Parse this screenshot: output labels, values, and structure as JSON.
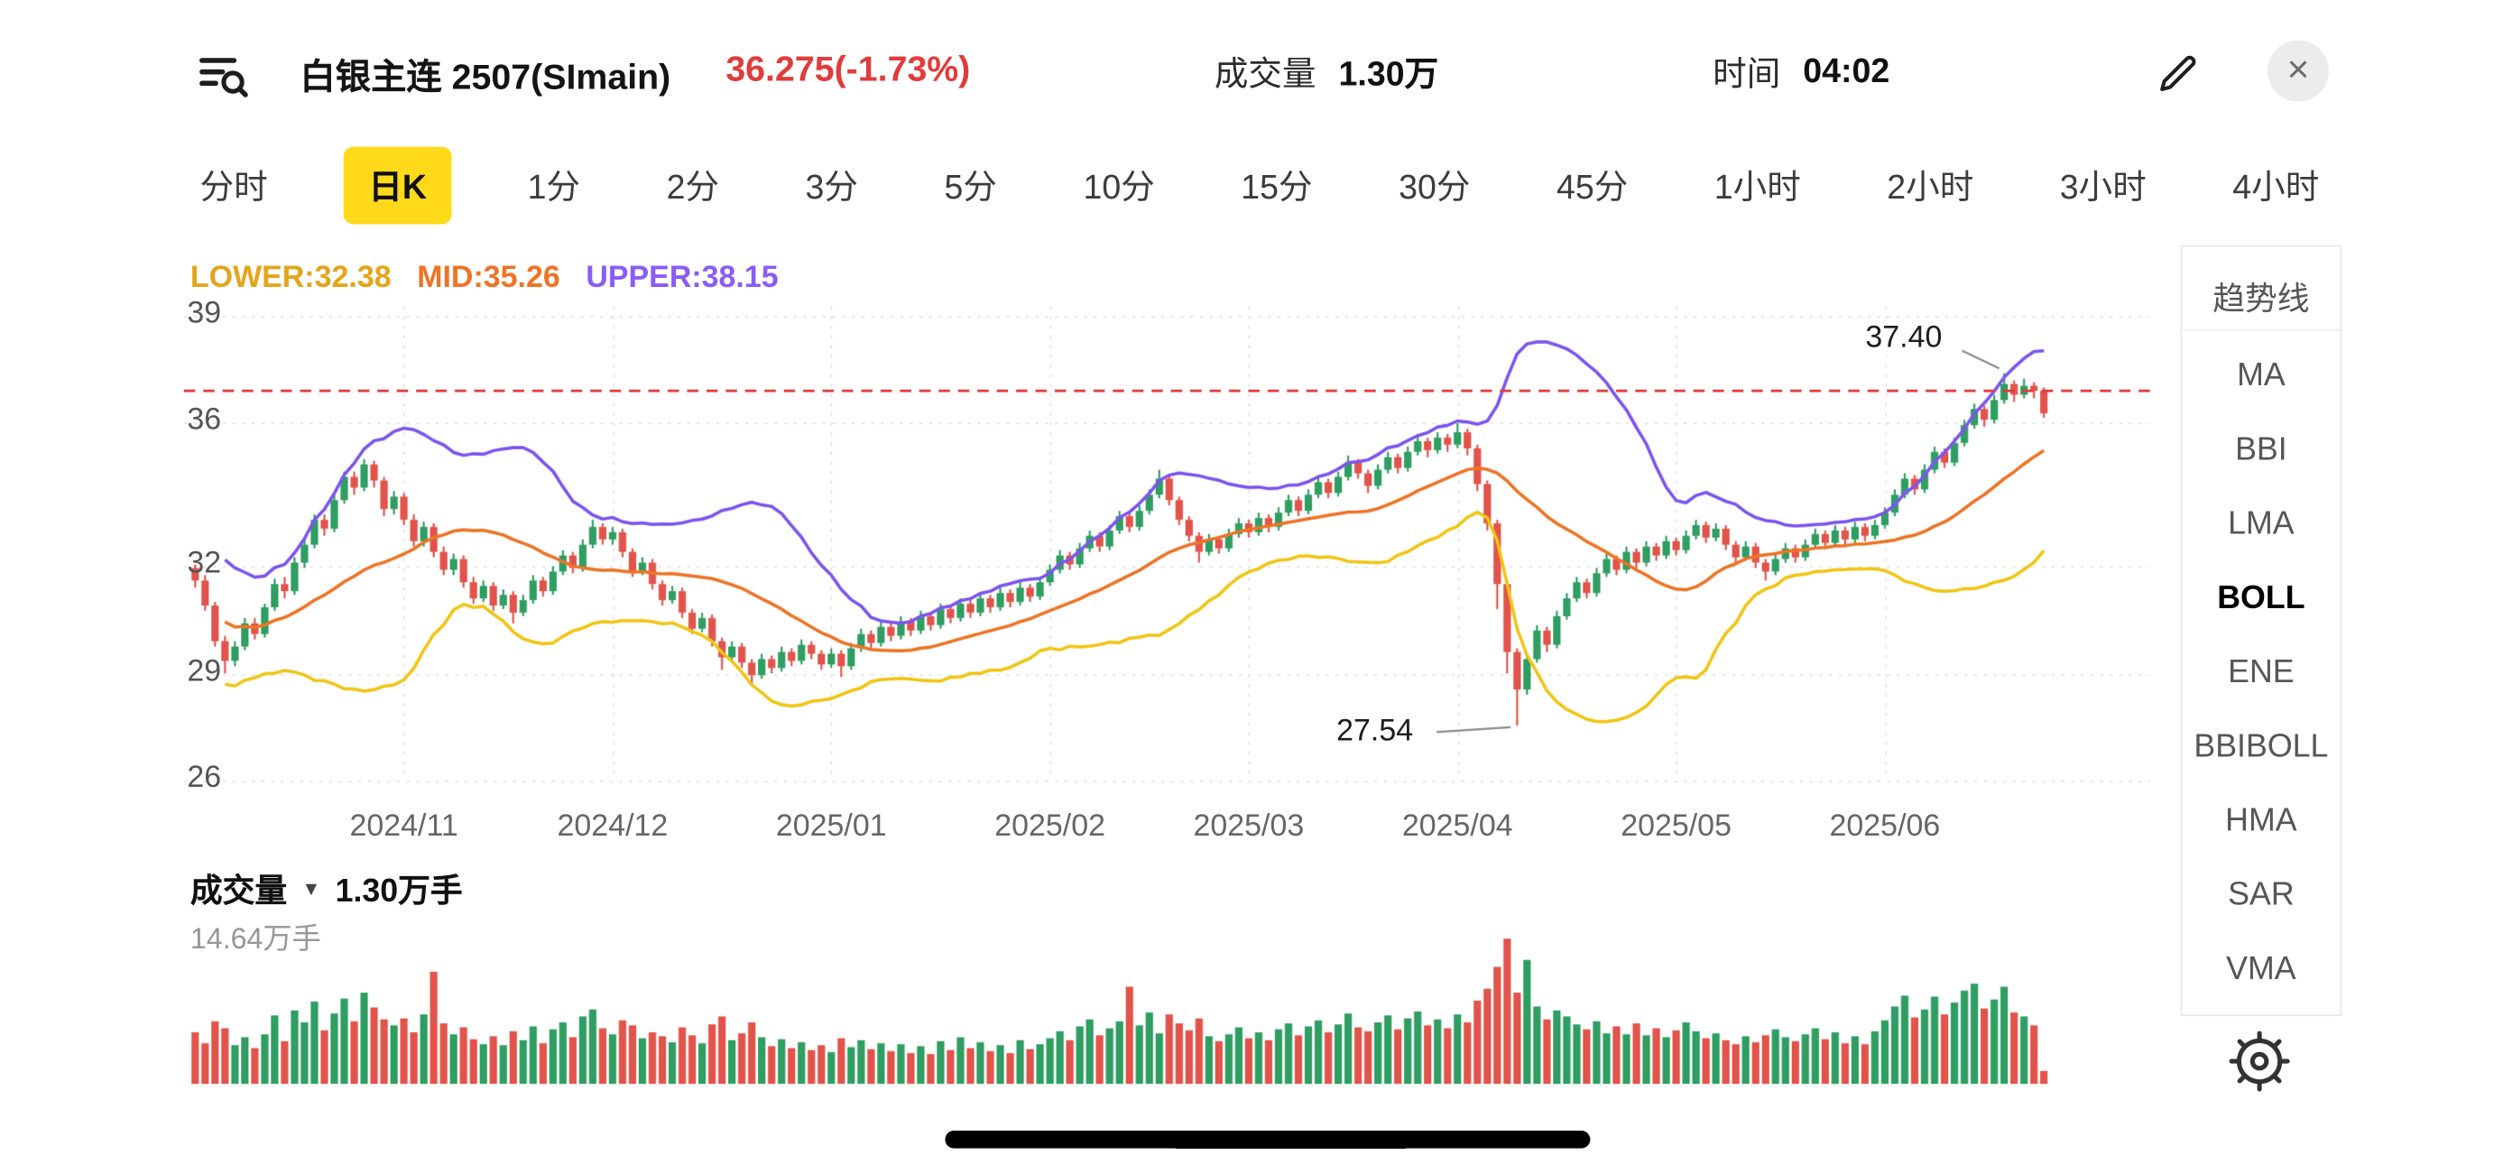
{
  "header": {
    "title": "白银主连 2507(SImain)",
    "price": "36.275(-1.73%)",
    "price_color": "#e23b3b",
    "volume_label": "成交量",
    "volume_value": "1.30万",
    "time_label": "时间",
    "time_value": "04:02",
    "icons": {
      "close": "×",
      "dropdown": "▼"
    }
  },
  "tabs": {
    "items": [
      "分时",
      "日K",
      "1分",
      "2分",
      "3分",
      "5分",
      "10分",
      "15分",
      "30分",
      "45分",
      "1小时",
      "2小时",
      "3小时",
      "4小时"
    ],
    "active": "日K",
    "active_bg": "#ffd91a"
  },
  "indicator": {
    "lower": {
      "text": "LOWER:32.38",
      "color": "#e3a51c"
    },
    "mid": {
      "text": "MID:35.26",
      "color": "#ee7426"
    },
    "upper": {
      "text": "UPPER:38.15",
      "color": "#8a5cf5"
    }
  },
  "volume_pane": {
    "label": "成交量",
    "value": "1.30万手",
    "max_label": "14.64万手"
  },
  "sidebar": {
    "items": [
      "趋势线",
      "MA",
      "BBI",
      "LMA",
      "BOLL",
      "ENE",
      "BBIBOLL",
      "HMA",
      "SAR",
      "VMA"
    ],
    "active": "BOLL"
  },
  "chart_data": {
    "type": "candlestick",
    "title": "白银主连 2507(SImain) 日K",
    "y_ticks": [
      39,
      36,
      32,
      29,
      26
    ],
    "y_range": [
      25.7,
      39.3
    ],
    "x_ticks": [
      {
        "label": "2024/11",
        "i": 21
      },
      {
        "label": "2024/12",
        "i": 42
      },
      {
        "label": "2025/01",
        "i": 64
      },
      {
        "label": "2025/02",
        "i": 86
      },
      {
        "label": "2025/03",
        "i": 106
      },
      {
        "label": "2025/04",
        "i": 127
      },
      {
        "label": "2025/05",
        "i": 149
      },
      {
        "label": "2025/06",
        "i": 170
      }
    ],
    "dashed_line_price": 36.91,
    "boll": {
      "period": 20,
      "mult": 2,
      "last_lower": 32.38,
      "last_mid": 35.26,
      "last_upper": 38.15
    },
    "annotations": [
      {
        "text": "37.40",
        "i": 182,
        "price": 37.4,
        "placement": "above-left"
      },
      {
        "text": "27.54",
        "i": 133,
        "price": 27.54,
        "placement": "left"
      }
    ],
    "colors": {
      "up": "#2f9e62",
      "down": "#e2544b",
      "boll_upper": "#7d55f0",
      "boll_mid": "#ee7426",
      "boll_lower": "#f0c514",
      "dashed": "#e23b3b",
      "grid": "#e5e5e5",
      "annotation_line": "#8a8a8a"
    },
    "volume_max": 14.64,
    "candles": [
      [
        31.95,
        32.05,
        31.4,
        31.6
      ],
      [
        31.6,
        31.75,
        30.75,
        30.9
      ],
      [
        30.9,
        31.0,
        29.75,
        29.9
      ],
      [
        29.9,
        30.05,
        29.0,
        29.35
      ],
      [
        29.35,
        29.9,
        29.2,
        29.75
      ],
      [
        29.75,
        30.55,
        29.65,
        30.4
      ],
      [
        30.4,
        30.55,
        29.95,
        30.1
      ],
      [
        30.1,
        30.95,
        30.0,
        30.85
      ],
      [
        30.85,
        31.65,
        30.75,
        31.5
      ],
      [
        31.5,
        31.7,
        31.1,
        31.3
      ],
      [
        31.3,
        32.25,
        31.2,
        32.1
      ],
      [
        32.1,
        32.75,
        31.95,
        32.6
      ],
      [
        32.6,
        33.45,
        32.5,
        33.3
      ],
      [
        33.3,
        33.45,
        32.85,
        33.05
      ],
      [
        33.05,
        34.0,
        32.95,
        33.85
      ],
      [
        33.85,
        34.65,
        33.75,
        34.5
      ],
      [
        34.5,
        34.65,
        34.0,
        34.2
      ],
      [
        34.2,
        35.0,
        34.1,
        34.85
      ],
      [
        34.85,
        34.95,
        34.2,
        34.4
      ],
      [
        34.4,
        34.5,
        33.4,
        33.6
      ],
      [
        33.6,
        34.1,
        33.45,
        33.95
      ],
      [
        33.95,
        34.05,
        33.15,
        33.3
      ],
      [
        33.3,
        33.45,
        32.55,
        32.7
      ],
      [
        32.7,
        33.25,
        32.55,
        33.1
      ],
      [
        33.1,
        33.2,
        32.25,
        32.4
      ],
      [
        32.4,
        32.55,
        31.75,
        31.9
      ],
      [
        31.9,
        32.35,
        31.75,
        32.2
      ],
      [
        32.2,
        32.3,
        31.4,
        31.55
      ],
      [
        31.55,
        31.7,
        30.95,
        31.1
      ],
      [
        31.1,
        31.6,
        31.0,
        31.45
      ],
      [
        31.45,
        31.55,
        30.75,
        30.9
      ],
      [
        30.9,
        31.35,
        30.8,
        31.2
      ],
      [
        31.2,
        31.3,
        30.4,
        30.7
      ],
      [
        30.7,
        31.2,
        30.6,
        31.05
      ],
      [
        31.05,
        31.75,
        30.95,
        31.6
      ],
      [
        31.6,
        31.7,
        31.15,
        31.3
      ],
      [
        31.3,
        32.0,
        31.2,
        31.85
      ],
      [
        31.85,
        32.45,
        31.75,
        32.3
      ],
      [
        32.3,
        32.4,
        31.8,
        31.95
      ],
      [
        31.95,
        32.75,
        31.85,
        32.6
      ],
      [
        32.6,
        33.3,
        32.5,
        33.1
      ],
      [
        33.1,
        33.2,
        32.6,
        32.75
      ],
      [
        32.75,
        33.1,
        32.6,
        32.95
      ],
      [
        32.95,
        33.05,
        32.25,
        32.4
      ],
      [
        32.4,
        32.5,
        31.7,
        31.85
      ],
      [
        31.85,
        32.25,
        31.75,
        32.1
      ],
      [
        32.1,
        32.2,
        31.35,
        31.5
      ],
      [
        31.5,
        31.6,
        30.9,
        31.05
      ],
      [
        31.05,
        31.45,
        30.95,
        31.3
      ],
      [
        31.3,
        31.4,
        30.55,
        30.7
      ],
      [
        30.7,
        30.8,
        30.1,
        30.25
      ],
      [
        30.25,
        30.7,
        30.15,
        30.55
      ],
      [
        30.55,
        30.65,
        29.75,
        29.9
      ],
      [
        29.9,
        30.0,
        29.1,
        29.45
      ],
      [
        29.45,
        29.9,
        29.35,
        29.75
      ],
      [
        29.75,
        29.85,
        29.15,
        29.3
      ],
      [
        29.3,
        29.4,
        28.7,
        28.95
      ],
      [
        28.95,
        29.55,
        28.85,
        29.4
      ],
      [
        29.4,
        29.5,
        29.0,
        29.15
      ],
      [
        29.15,
        29.75,
        29.05,
        29.6
      ],
      [
        29.6,
        29.7,
        29.2,
        29.35
      ],
      [
        29.35,
        29.95,
        29.25,
        29.8
      ],
      [
        29.8,
        29.9,
        29.4,
        29.55
      ],
      [
        29.55,
        29.65,
        29.1,
        29.25
      ],
      [
        29.25,
        29.7,
        29.15,
        29.55
      ],
      [
        29.55,
        29.65,
        28.9,
        29.2
      ],
      [
        29.2,
        29.85,
        29.1,
        29.7
      ],
      [
        29.7,
        30.25,
        29.6,
        30.1
      ],
      [
        30.1,
        30.2,
        29.7,
        29.85
      ],
      [
        29.85,
        30.45,
        29.75,
        30.3
      ],
      [
        30.3,
        30.4,
        29.9,
        30.05
      ],
      [
        30.05,
        30.6,
        29.95,
        30.45
      ],
      [
        30.45,
        30.55,
        30.05,
        30.2
      ],
      [
        30.2,
        30.75,
        30.1,
        30.6
      ],
      [
        30.6,
        30.7,
        30.2,
        30.35
      ],
      [
        30.35,
        30.95,
        30.25,
        30.8
      ],
      [
        30.8,
        30.9,
        30.4,
        30.55
      ],
      [
        30.55,
        31.1,
        30.45,
        30.95
      ],
      [
        30.95,
        31.05,
        30.55,
        30.7
      ],
      [
        30.7,
        31.25,
        30.6,
        31.1
      ],
      [
        31.1,
        31.2,
        30.7,
        30.85
      ],
      [
        30.85,
        31.4,
        30.75,
        31.25
      ],
      [
        31.25,
        31.35,
        30.85,
        31.0
      ],
      [
        31.0,
        31.55,
        30.9,
        31.4
      ],
      [
        31.4,
        31.5,
        31.0,
        31.15
      ],
      [
        31.15,
        31.7,
        31.05,
        31.55
      ],
      [
        31.55,
        32.05,
        31.45,
        31.9
      ],
      [
        31.9,
        32.45,
        31.8,
        32.3
      ],
      [
        32.3,
        32.4,
        31.9,
        32.05
      ],
      [
        32.05,
        32.65,
        31.95,
        32.5
      ],
      [
        32.5,
        33.0,
        32.4,
        32.85
      ],
      [
        32.85,
        32.95,
        32.4,
        32.55
      ],
      [
        32.55,
        33.15,
        32.45,
        33.0
      ],
      [
        33.0,
        33.55,
        32.9,
        33.4
      ],
      [
        33.4,
        33.5,
        32.95,
        33.1
      ],
      [
        33.1,
        33.7,
        33.0,
        33.55
      ],
      [
        33.55,
        34.15,
        33.45,
        34.0
      ],
      [
        34.0,
        34.7,
        33.9,
        34.45
      ],
      [
        34.45,
        34.55,
        33.7,
        33.85
      ],
      [
        33.85,
        33.95,
        33.15,
        33.3
      ],
      [
        33.3,
        33.4,
        32.7,
        32.85
      ],
      [
        32.85,
        32.95,
        32.1,
        32.4
      ],
      [
        32.4,
        32.9,
        32.3,
        32.75
      ],
      [
        32.75,
        32.85,
        32.35,
        32.5
      ],
      [
        32.5,
        33.05,
        32.4,
        32.9
      ],
      [
        32.9,
        33.35,
        32.8,
        33.2
      ],
      [
        33.2,
        33.3,
        32.8,
        32.95
      ],
      [
        32.95,
        33.5,
        32.85,
        33.35
      ],
      [
        33.35,
        33.45,
        32.95,
        33.1
      ],
      [
        33.1,
        33.65,
        33.0,
        33.5
      ],
      [
        33.5,
        34.0,
        33.4,
        33.85
      ],
      [
        33.85,
        33.95,
        33.4,
        33.55
      ],
      [
        33.55,
        34.15,
        33.45,
        34.0
      ],
      [
        34.0,
        34.5,
        33.9,
        34.35
      ],
      [
        34.35,
        34.45,
        33.9,
        34.05
      ],
      [
        34.05,
        34.65,
        33.95,
        34.5
      ],
      [
        34.5,
        35.1,
        34.4,
        34.9
      ],
      [
        34.9,
        35.0,
        34.45,
        34.6
      ],
      [
        34.6,
        34.7,
        34.05,
        34.25
      ],
      [
        34.25,
        34.85,
        34.15,
        34.7
      ],
      [
        34.7,
        35.2,
        34.6,
        35.05
      ],
      [
        35.05,
        35.15,
        34.6,
        34.75
      ],
      [
        34.75,
        35.35,
        34.65,
        35.2
      ],
      [
        35.2,
        35.7,
        35.1,
        35.5
      ],
      [
        35.5,
        35.6,
        35.05,
        35.25
      ],
      [
        35.25,
        35.75,
        35.15,
        35.6
      ],
      [
        35.6,
        35.7,
        35.2,
        35.4
      ],
      [
        35.4,
        36.0,
        35.3,
        35.75
      ],
      [
        35.75,
        35.85,
        35.1,
        35.3
      ],
      [
        35.3,
        35.4,
        34.1,
        34.3
      ],
      [
        34.3,
        34.4,
        33.0,
        33.2
      ],
      [
        33.2,
        33.3,
        30.8,
        31.5
      ],
      [
        31.5,
        31.6,
        29.0,
        29.6
      ],
      [
        29.6,
        29.7,
        27.54,
        28.55
      ],
      [
        28.55,
        29.55,
        28.4,
        29.4
      ],
      [
        29.4,
        30.35,
        29.3,
        30.2
      ],
      [
        30.2,
        30.3,
        29.6,
        29.8
      ],
      [
        29.8,
        30.75,
        29.7,
        30.6
      ],
      [
        30.6,
        31.25,
        30.5,
        31.1
      ],
      [
        31.1,
        31.7,
        31.0,
        31.55
      ],
      [
        31.55,
        31.65,
        31.1,
        31.25
      ],
      [
        31.25,
        31.95,
        31.15,
        31.8
      ],
      [
        31.8,
        32.35,
        31.7,
        32.2
      ],
      [
        32.2,
        32.3,
        31.75,
        31.9
      ],
      [
        31.9,
        32.55,
        31.8,
        32.4
      ],
      [
        32.4,
        32.5,
        31.95,
        32.1
      ],
      [
        32.1,
        32.7,
        32.0,
        32.55
      ],
      [
        32.55,
        32.65,
        32.15,
        32.3
      ],
      [
        32.3,
        32.85,
        32.2,
        32.7
      ],
      [
        32.7,
        32.8,
        32.3,
        32.45
      ],
      [
        32.45,
        33.0,
        32.35,
        32.85
      ],
      [
        32.85,
        33.3,
        32.75,
        33.15
      ],
      [
        33.15,
        33.25,
        32.65,
        32.8
      ],
      [
        32.8,
        33.2,
        32.7,
        33.05
      ],
      [
        33.05,
        33.15,
        32.45,
        32.6
      ],
      [
        32.6,
        32.7,
        32.1,
        32.25
      ],
      [
        32.25,
        32.7,
        32.15,
        32.55
      ],
      [
        32.55,
        32.65,
        31.95,
        32.1
      ],
      [
        32.1,
        32.2,
        31.6,
        31.85
      ],
      [
        31.85,
        32.35,
        31.75,
        32.2
      ],
      [
        32.2,
        32.65,
        32.1,
        32.5
      ],
      [
        32.5,
        32.6,
        32.1,
        32.25
      ],
      [
        32.25,
        32.75,
        32.15,
        32.6
      ],
      [
        32.6,
        33.05,
        32.5,
        32.9
      ],
      [
        32.9,
        33.0,
        32.5,
        32.65
      ],
      [
        32.65,
        33.15,
        32.55,
        33.0
      ],
      [
        33.0,
        33.1,
        32.6,
        32.75
      ],
      [
        32.75,
        33.25,
        32.65,
        33.1
      ],
      [
        33.1,
        33.2,
        32.7,
        32.85
      ],
      [
        32.85,
        33.3,
        32.75,
        33.15
      ],
      [
        33.15,
        33.65,
        33.05,
        33.5
      ],
      [
        33.5,
        34.15,
        33.4,
        34.0
      ],
      [
        34.0,
        34.6,
        33.9,
        34.45
      ],
      [
        34.45,
        34.55,
        34.0,
        34.15
      ],
      [
        34.15,
        34.85,
        34.05,
        34.7
      ],
      [
        34.7,
        35.35,
        34.6,
        35.2
      ],
      [
        35.2,
        35.3,
        34.75,
        34.9
      ],
      [
        34.9,
        35.6,
        34.8,
        35.45
      ],
      [
        35.45,
        36.1,
        35.35,
        35.95
      ],
      [
        35.95,
        36.55,
        35.85,
        36.4
      ],
      [
        36.4,
        36.5,
        35.9,
        36.1
      ],
      [
        36.1,
        36.8,
        36.0,
        36.65
      ],
      [
        36.65,
        37.4,
        36.55,
        37.1
      ],
      [
        37.1,
        37.2,
        36.6,
        36.8
      ],
      [
        36.8,
        37.25,
        36.7,
        37.05
      ],
      [
        37.05,
        37.15,
        36.7,
        36.91
      ],
      [
        36.91,
        37.0,
        36.15,
        36.28
      ]
    ],
    "volumes": [
      5.2,
      4.1,
      6.3,
      5.6,
      3.9,
      4.7,
      3.6,
      5.0,
      6.9,
      4.3,
      7.4,
      6.2,
      8.3,
      5.4,
      7.1,
      8.6,
      6.3,
      9.2,
      7.7,
      6.5,
      5.9,
      6.6,
      5.2,
      7.0,
      11.3,
      6.1,
      5.0,
      5.7,
      4.5,
      4.0,
      4.8,
      3.9,
      5.3,
      4.4,
      5.8,
      4.1,
      5.5,
      6.2,
      4.7,
      6.8,
      7.5,
      5.6,
      5.0,
      6.4,
      5.9,
      4.6,
      5.2,
      4.8,
      4.2,
      5.7,
      4.9,
      4.1,
      6.0,
      6.8,
      4.4,
      5.1,
      6.2,
      4.7,
      3.8,
      4.5,
      3.6,
      4.2,
      3.4,
      3.9,
      3.2,
      4.6,
      3.7,
      4.4,
      3.5,
      4.1,
      3.3,
      4.0,
      3.1,
      3.8,
      3.0,
      4.3,
      3.4,
      4.7,
      3.6,
      4.2,
      3.3,
      3.9,
      3.1,
      4.4,
      3.5,
      4.0,
      4.6,
      5.3,
      4.4,
      5.8,
      6.5,
      4.9,
      5.6,
      6.3,
      9.8,
      5.9,
      7.2,
      5.1,
      7.0,
      6.1,
      5.4,
      6.6,
      4.8,
      4.3,
      5.0,
      5.7,
      4.6,
      5.2,
      4.4,
      5.5,
      6.1,
      4.9,
      5.8,
      6.4,
      5.2,
      6.0,
      7.1,
      5.7,
      5.3,
      6.2,
      6.9,
      5.5,
      6.6,
      7.3,
      5.9,
      6.5,
      5.6,
      7.0,
      6.2,
      8.4,
      9.6,
      11.8,
      14.64,
      9.2,
      12.5,
      7.8,
      6.5,
      7.4,
      6.8,
      6.0,
      5.5,
      6.3,
      5.1,
      5.8,
      5.0,
      6.1,
      4.9,
      5.6,
      4.7,
      5.4,
      6.2,
      5.3,
      4.6,
      5.1,
      4.4,
      4.0,
      4.8,
      4.2,
      4.9,
      5.5,
      4.7,
      4.3,
      5.0,
      5.6,
      4.5,
      5.2,
      4.1,
      4.8,
      4.0,
      5.3,
      6.4,
      7.8,
      8.9,
      6.7,
      7.5,
      8.8,
      7.0,
      8.2,
      9.4,
      10.1,
      7.6,
      8.5,
      9.8,
      7.2,
      6.8,
      5.9,
      1.3
    ]
  }
}
